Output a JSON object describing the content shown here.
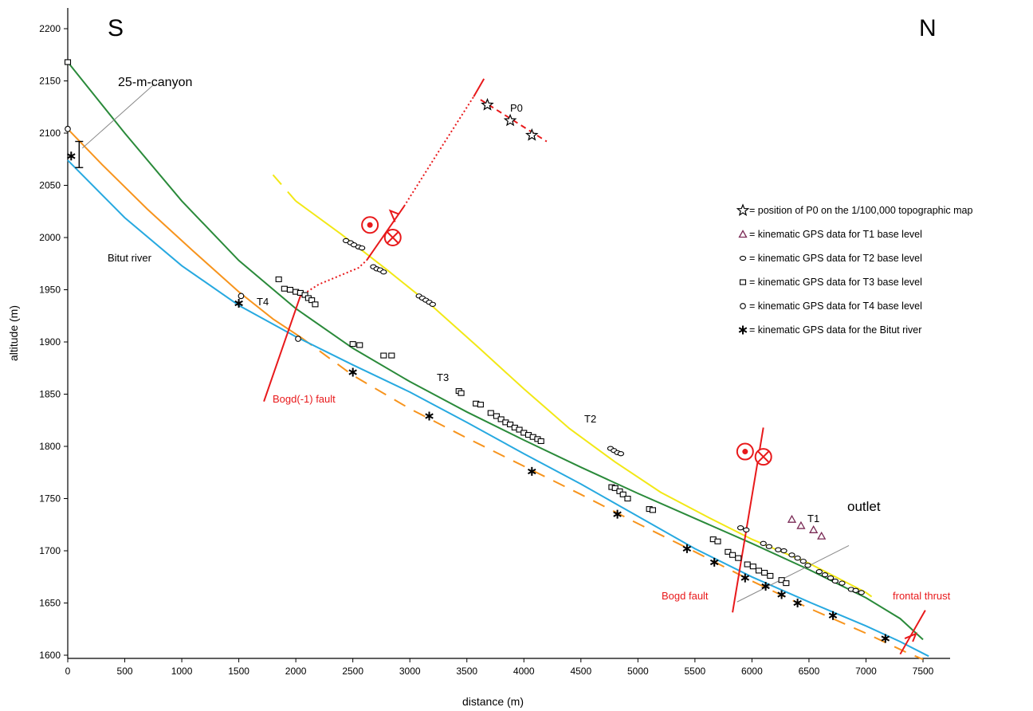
{
  "chart_data": {
    "type": "scatter",
    "title": "",
    "xlabel": "distance (m)",
    "ylabel": "altitude (m)",
    "xlim": [
      0,
      7750
    ],
    "ylim": [
      1595,
      2220
    ],
    "xticks": [
      0,
      500,
      1000,
      1500,
      2000,
      2500,
      3000,
      3500,
      4000,
      4500,
      5000,
      5500,
      6000,
      6500,
      7000,
      7500
    ],
    "yticks": [
      1600,
      1650,
      1700,
      1750,
      1800,
      1850,
      1900,
      1950,
      2000,
      2050,
      2100,
      2150,
      2200
    ],
    "corner_labels": {
      "left": "S",
      "right": "N"
    },
    "legend": [
      {
        "marker": "star",
        "text": "= position of P0 on the 1/100,000  topographic map"
      },
      {
        "marker": "triangle",
        "text": "= kinematic GPS data for T1 base level"
      },
      {
        "marker": "small-ellipse",
        "text": "= kinematic GPS data for T2 base level"
      },
      {
        "marker": "square",
        "text": "= kinematic GPS data for T3 base level"
      },
      {
        "marker": "circle",
        "text": "= kinematic GPS data for T4 base level"
      },
      {
        "marker": "asterisk",
        "text": "= kinematic GPS data for the Bitut river"
      }
    ],
    "lines": [
      {
        "id": "T3",
        "color": "#2a8a3a",
        "style": "solid",
        "points": [
          [
            0,
            2168
          ],
          [
            500,
            2100
          ],
          [
            1000,
            2035
          ],
          [
            1500,
            1978
          ],
          [
            2000,
            1932
          ],
          [
            2500,
            1894
          ],
          [
            3000,
            1862
          ],
          [
            3500,
            1833
          ],
          [
            4000,
            1806
          ],
          [
            4500,
            1780
          ],
          [
            5000,
            1755
          ],
          [
            5500,
            1731
          ],
          [
            6000,
            1707
          ],
          [
            6500,
            1682
          ],
          [
            7000,
            1655
          ],
          [
            7300,
            1635
          ],
          [
            7500,
            1615
          ]
        ]
      },
      {
        "id": "T4",
        "color": "#f7941d",
        "style": "solid",
        "points": [
          [
            0,
            2104
          ],
          [
            300,
            2070
          ],
          [
            700,
            2027
          ],
          [
            1100,
            1987
          ],
          [
            1500,
            1948
          ],
          [
            1800,
            1922
          ],
          [
            2050,
            1904
          ]
        ]
      },
      {
        "id": "T4-dashed",
        "color": "#f7941d",
        "style": "dashed",
        "points": [
          [
            2050,
            1904
          ],
          [
            2500,
            1868
          ],
          [
            3000,
            1836
          ],
          [
            3500,
            1808
          ],
          [
            4000,
            1781
          ],
          [
            4500,
            1754
          ],
          [
            5000,
            1726
          ],
          [
            5500,
            1699
          ],
          [
            6000,
            1671
          ],
          [
            6500,
            1645
          ],
          [
            7000,
            1621
          ],
          [
            7350,
            1603
          ],
          [
            7500,
            1596
          ]
        ]
      },
      {
        "id": "Bitut river",
        "color": "#27a9e0",
        "style": "solid",
        "points": [
          [
            0,
            2074
          ],
          [
            500,
            2019
          ],
          [
            1000,
            1973
          ],
          [
            1500,
            1935
          ],
          [
            2000,
            1905
          ],
          [
            2500,
            1878
          ],
          [
            3000,
            1852
          ],
          [
            3500,
            1823
          ],
          [
            4000,
            1793
          ],
          [
            4500,
            1764
          ],
          [
            5000,
            1733
          ],
          [
            5500,
            1702
          ],
          [
            6000,
            1675
          ],
          [
            6500,
            1651
          ],
          [
            7000,
            1628
          ],
          [
            7300,
            1613
          ],
          [
            7550,
            1599
          ]
        ]
      },
      {
        "id": "T2",
        "color": "#f2e816",
        "style": "solid",
        "points": [
          [
            2000,
            2035
          ],
          [
            2400,
            2003
          ],
          [
            2800,
            1969
          ],
          [
            3200,
            1934
          ],
          [
            3600,
            1895
          ],
          [
            4000,
            1855
          ],
          [
            4400,
            1817
          ],
          [
            4800,
            1785
          ],
          [
            5200,
            1756
          ],
          [
            5600,
            1733
          ],
          [
            6000,
            1711
          ],
          [
            6500,
            1688
          ],
          [
            7000,
            1660
          ],
          [
            7050,
            1656
          ]
        ]
      },
      {
        "id": "T2-dashed",
        "color": "#f2e816",
        "style": "dashed",
        "points": [
          [
            1800,
            2060
          ],
          [
            2000,
            2035
          ]
        ]
      },
      {
        "id": "P0-dashed",
        "color": "#e8191b",
        "style": "dashed",
        "points": [
          [
            3620,
            2132
          ],
          [
            4200,
            2092
          ]
        ]
      }
    ],
    "series": [
      {
        "name": "P0",
        "marker": "star",
        "points": [
          [
            3680,
            2127
          ],
          [
            3880,
            2112
          ],
          [
            4070,
            2098
          ]
        ]
      },
      {
        "name": "T1",
        "marker": "triangle",
        "points": [
          [
            6350,
            1730
          ],
          [
            6430,
            1724
          ],
          [
            6540,
            1720
          ],
          [
            6610,
            1714
          ]
        ]
      },
      {
        "name": "T2",
        "marker": "small-ellipse",
        "points": [
          [
            2440,
            1997
          ],
          [
            2480,
            1995
          ],
          [
            2510,
            1993
          ],
          [
            2550,
            1991
          ],
          [
            2580,
            1990
          ],
          [
            2680,
            1972
          ],
          [
            2710,
            1970
          ],
          [
            2740,
            1969
          ],
          [
            2770,
            1967
          ],
          [
            3080,
            1944
          ],
          [
            3110,
            1942
          ],
          [
            3140,
            1940
          ],
          [
            3170,
            1938
          ],
          [
            3200,
            1936
          ],
          [
            4760,
            1798
          ],
          [
            4790,
            1796
          ],
          [
            4820,
            1794
          ],
          [
            4850,
            1793
          ],
          [
            5900,
            1722
          ],
          [
            5950,
            1720
          ],
          [
            6100,
            1707
          ],
          [
            6150,
            1704
          ],
          [
            6230,
            1701
          ],
          [
            6280,
            1700
          ],
          [
            6350,
            1696
          ],
          [
            6400,
            1693
          ],
          [
            6450,
            1690
          ],
          [
            6490,
            1686
          ],
          [
            6590,
            1680
          ],
          [
            6640,
            1677
          ],
          [
            6690,
            1674
          ],
          [
            6730,
            1671
          ],
          [
            6790,
            1669
          ],
          [
            6870,
            1663
          ],
          [
            6910,
            1662
          ],
          [
            6960,
            1660
          ]
        ]
      },
      {
        "name": "T3",
        "marker": "square",
        "points": [
          [
            0,
            2168
          ],
          [
            1850,
            1960
          ],
          [
            1900,
            1951
          ],
          [
            1950,
            1950
          ],
          [
            2000,
            1948
          ],
          [
            2040,
            1947
          ],
          [
            2080,
            1945
          ],
          [
            2110,
            1942
          ],
          [
            2140,
            1940
          ],
          [
            2170,
            1936
          ],
          [
            2500,
            1898
          ],
          [
            2560,
            1897
          ],
          [
            2770,
            1887
          ],
          [
            2840,
            1887
          ],
          [
            3430,
            1853
          ],
          [
            3450,
            1851
          ],
          [
            3580,
            1841
          ],
          [
            3620,
            1840
          ],
          [
            3710,
            1832
          ],
          [
            3760,
            1829
          ],
          [
            3800,
            1826
          ],
          [
            3840,
            1823
          ],
          [
            3880,
            1821
          ],
          [
            3920,
            1818
          ],
          [
            3960,
            1816
          ],
          [
            4000,
            1813
          ],
          [
            4040,
            1811
          ],
          [
            4080,
            1809
          ],
          [
            4120,
            1807
          ],
          [
            4150,
            1805
          ],
          [
            4770,
            1761
          ],
          [
            4800,
            1760
          ],
          [
            4840,
            1757
          ],
          [
            4870,
            1754
          ],
          [
            4910,
            1750
          ],
          [
            5100,
            1740
          ],
          [
            5130,
            1739
          ],
          [
            5660,
            1711
          ],
          [
            5700,
            1709
          ],
          [
            5790,
            1699
          ],
          [
            5830,
            1696
          ],
          [
            5880,
            1693
          ],
          [
            5960,
            1687
          ],
          [
            6010,
            1685
          ],
          [
            6060,
            1681
          ],
          [
            6110,
            1679
          ],
          [
            6160,
            1676
          ],
          [
            6260,
            1672
          ],
          [
            6300,
            1669
          ]
        ]
      },
      {
        "name": "T4",
        "marker": "circle",
        "points": [
          [
            0,
            2104
          ],
          [
            1520,
            1944
          ],
          [
            2020,
            1903
          ]
        ]
      },
      {
        "name": "Bitut river",
        "marker": "asterisk",
        "points": [
          [
            30,
            2078
          ],
          [
            1500,
            1937
          ],
          [
            2500,
            1871
          ],
          [
            3170,
            1829
          ],
          [
            4070,
            1776
          ],
          [
            4820,
            1735
          ],
          [
            5430,
            1702
          ],
          [
            5670,
            1689
          ],
          [
            5940,
            1674
          ],
          [
            6120,
            1666
          ],
          [
            6260,
            1658
          ],
          [
            6400,
            1650
          ],
          [
            6710,
            1638
          ],
          [
            7170,
            1616
          ]
        ]
      }
    ],
    "annotations": [
      {
        "text": "S"
      },
      {
        "text": "N"
      },
      {
        "text": "25-m-canyon"
      },
      {
        "text": "Bitut river"
      },
      {
        "text": "T4"
      },
      {
        "text": "T3"
      },
      {
        "text": "T2"
      },
      {
        "text": "T1"
      },
      {
        "text": "P0"
      },
      {
        "text": "outlet"
      },
      {
        "text": "Bogd(-1) fault",
        "color": "#e8191b"
      },
      {
        "text": "Bogd fault",
        "color": "#e8191b"
      },
      {
        "text": "frontal thrust",
        "color": "#e8191b"
      }
    ],
    "faults": [
      {
        "name": "Bogd(-1) fault",
        "points": [
          [
            1720,
            1843
          ],
          [
            2040,
            1944
          ]
        ]
      },
      {
        "name": "Bogd(-1) fault upper",
        "points": [
          [
            2620,
            1978
          ],
          [
            2950,
            2030
          ]
        ]
      },
      {
        "name": "Bogd fault",
        "points": [
          [
            5830,
            1641
          ],
          [
            6100,
            1818
          ]
        ]
      },
      {
        "name": "frontal thrust",
        "points": [
          [
            7300,
            1601
          ],
          [
            7520,
            1643
          ]
        ]
      }
    ],
    "fault_dotted": [
      [
        2040,
        1944
      ],
      [
        2200,
        1955
      ],
      [
        2550,
        1971
      ],
      [
        2620,
        1978
      ]
    ],
    "fault_dotted_upper": [
      [
        2950,
        2030
      ],
      [
        3250,
        2082
      ],
      [
        3560,
        2135
      ]
    ],
    "fault_upper_red": [
      [
        3560,
        2135
      ],
      [
        3650,
        2152
      ]
    ],
    "canyon_bar": {
      "x": 100,
      "y_top": 2092,
      "y_bottom": 2067
    },
    "colors": {
      "fault": "#e8191b",
      "grid": "none"
    }
  }
}
